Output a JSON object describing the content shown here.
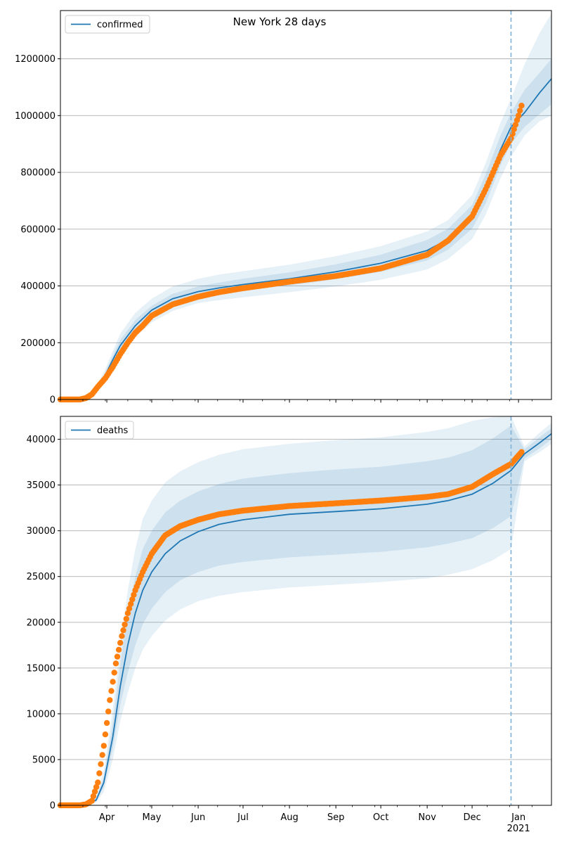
{
  "figure": {
    "title": "New York 28 days"
  },
  "colors": {
    "model": "#1f77b4",
    "observed": "#ff7f0e",
    "band": "#1f77b4",
    "grid": "#b0b0b0",
    "forecast_line": "#7fb0d6"
  },
  "x_axis": {
    "start": "2020-03-01",
    "end": "2021-01-23",
    "ticks": [
      {
        "date": "2020-04-01",
        "label": "Apr"
      },
      {
        "date": "2020-05-01",
        "label": "May"
      },
      {
        "date": "2020-06-01",
        "label": "Jun"
      },
      {
        "date": "2020-07-01",
        "label": "Jul"
      },
      {
        "date": "2020-08-01",
        "label": "Aug"
      },
      {
        "date": "2020-09-01",
        "label": "Sep"
      },
      {
        "date": "2020-10-01",
        "label": "Oct"
      },
      {
        "date": "2020-11-01",
        "label": "Nov"
      },
      {
        "date": "2020-12-01",
        "label": "Dec"
      },
      {
        "date": "2021-01-01",
        "label": "Jan"
      }
    ],
    "year_label": "2021",
    "forecast_date": "2020-12-27"
  },
  "chart_data": [
    {
      "type": "line",
      "legend": "confirmed",
      "legend_loc": "upper left",
      "grid": "y",
      "ylim": [
        0,
        1370000
      ],
      "yticks": [
        "0",
        "200000",
        "400000",
        "600000",
        "800000",
        "1000000",
        "1200000"
      ],
      "model": {
        "x": [
          "2020-03-01",
          "2020-03-15",
          "2020-03-20",
          "2020-03-25",
          "2020-03-30",
          "2020-04-05",
          "2020-04-10",
          "2020-04-20",
          "2020-05-01",
          "2020-05-15",
          "2020-06-01",
          "2020-06-15",
          "2020-07-01",
          "2020-08-01",
          "2020-09-01",
          "2020-10-01",
          "2020-11-01",
          "2020-11-15",
          "2020-12-01",
          "2020-12-10",
          "2020-12-20",
          "2020-12-27",
          "2021-01-05",
          "2021-01-15",
          "2021-01-23"
        ],
        "y": [
          0,
          0,
          8000,
          35000,
          75000,
          140000,
          190000,
          260000,
          315000,
          355000,
          380000,
          393000,
          405000,
          425000,
          450000,
          480000,
          525000,
          565000,
          645000,
          740000,
          880000,
          960000,
          1010000,
          1080000,
          1130000
        ],
        "band_inner": [
          [
            0,
            0
          ],
          [
            0,
            0
          ],
          [
            6000,
            10000
          ],
          [
            30000,
            40000
          ],
          [
            65000,
            85000
          ],
          [
            125000,
            155000
          ],
          [
            170000,
            210000
          ],
          [
            240000,
            280000
          ],
          [
            295000,
            330000
          ],
          [
            335000,
            372000
          ],
          [
            362000,
            398000
          ],
          [
            373000,
            412000
          ],
          [
            384000,
            425000
          ],
          [
            402000,
            448000
          ],
          [
            424000,
            476000
          ],
          [
            450000,
            510000
          ],
          [
            490000,
            562000
          ],
          [
            528000,
            602000
          ],
          [
            602000,
            685000
          ],
          [
            690000,
            792000
          ],
          [
            825000,
            930000
          ],
          [
            902000,
            1010000
          ],
          [
            960000,
            1090000
          ],
          [
            1005000,
            1150000
          ],
          [
            1040000,
            1200000
          ]
        ],
        "band_outer": [
          [
            0,
            0
          ],
          [
            0,
            0
          ],
          [
            4000,
            13000
          ],
          [
            24000,
            47000
          ],
          [
            55000,
            96000
          ],
          [
            110000,
            170000
          ],
          [
            150000,
            232000
          ],
          [
            220000,
            305000
          ],
          [
            272000,
            355000
          ],
          [
            312000,
            398000
          ],
          [
            340000,
            425000
          ],
          [
            350000,
            440000
          ],
          [
            360000,
            452000
          ],
          [
            378000,
            475000
          ],
          [
            398000,
            505000
          ],
          [
            422000,
            540000
          ],
          [
            458000,
            592000
          ],
          [
            495000,
            632000
          ],
          [
            565000,
            720000
          ],
          [
            650000,
            832000
          ],
          [
            780000,
            975000
          ],
          [
            855000,
            1060000
          ],
          [
            930000,
            1180000
          ],
          [
            980000,
            1290000
          ],
          [
            1000000,
            1360000
          ]
        ]
      },
      "observed": {
        "x": [
          "2020-03-01",
          "2020-03-14",
          "2020-03-18",
          "2020-03-22",
          "2020-03-26",
          "2020-03-31",
          "2020-04-05",
          "2020-04-10",
          "2020-04-15",
          "2020-04-20",
          "2020-04-25",
          "2020-05-01",
          "2020-05-15",
          "2020-06-01",
          "2020-06-15",
          "2020-07-01",
          "2020-08-01",
          "2020-09-01",
          "2020-10-01",
          "2020-11-01",
          "2020-11-15",
          "2020-12-01",
          "2020-12-10",
          "2020-12-20",
          "2020-12-27",
          "2021-01-01",
          "2021-01-03"
        ],
        "y": [
          0,
          0,
          5000,
          18000,
          45000,
          75000,
          115000,
          160000,
          200000,
          235000,
          260000,
          295000,
          335000,
          362000,
          378000,
          392000,
          415000,
          435000,
          462000,
          510000,
          560000,
          645000,
          740000,
          860000,
          920000,
          1000000,
          1035000
        ]
      }
    },
    {
      "type": "line",
      "legend": "deaths",
      "legend_loc": "upper left",
      "grid": "y",
      "ylim": [
        0,
        42500
      ],
      "yticks": [
        "0",
        "5000",
        "10000",
        "15000",
        "20000",
        "25000",
        "30000",
        "35000",
        "40000"
      ],
      "model": {
        "x": [
          "2020-03-01",
          "2020-03-15",
          "2020-03-20",
          "2020-03-25",
          "2020-03-30",
          "2020-04-05",
          "2020-04-10",
          "2020-04-15",
          "2020-04-20",
          "2020-04-25",
          "2020-05-01",
          "2020-05-10",
          "2020-05-20",
          "2020-06-01",
          "2020-06-15",
          "2020-07-01",
          "2020-08-01",
          "2020-09-01",
          "2020-10-01",
          "2020-11-01",
          "2020-11-15",
          "2020-12-01",
          "2020-12-15",
          "2020-12-27",
          "2021-01-05",
          "2021-01-15",
          "2021-01-23"
        ],
        "y": [
          0,
          0,
          100,
          600,
          2500,
          7500,
          13000,
          17500,
          21000,
          23500,
          25500,
          27500,
          28900,
          29900,
          30700,
          31200,
          31800,
          32100,
          32400,
          32900,
          33300,
          34000,
          35200,
          36600,
          38400,
          39600,
          40600
        ],
        "band_inner": [
          [
            0,
            0
          ],
          [
            0,
            0
          ],
          [
            70,
            130
          ],
          [
            450,
            800
          ],
          [
            2000,
            3100
          ],
          [
            6200,
            9000
          ],
          [
            11000,
            15500
          ],
          [
            14500,
            21000
          ],
          [
            17500,
            25000
          ],
          [
            19800,
            28000
          ],
          [
            21500,
            30000
          ],
          [
            23300,
            32000
          ],
          [
            24600,
            33300
          ],
          [
            25500,
            34300
          ],
          [
            26200,
            35100
          ],
          [
            26600,
            35700
          ],
          [
            27100,
            36300
          ],
          [
            27400,
            36700
          ],
          [
            27700,
            37000
          ],
          [
            28200,
            37600
          ],
          [
            28600,
            38000
          ],
          [
            29200,
            38800
          ],
          [
            30300,
            40100
          ],
          [
            31600,
            41500
          ],
          [
            37900,
            38900
          ],
          [
            39000,
            40200
          ],
          [
            40000,
            41200
          ]
        ],
        "band_outer": [
          [
            0,
            0
          ],
          [
            0,
            0
          ],
          [
            40,
            170
          ],
          [
            320,
            1050
          ],
          [
            1500,
            3800
          ],
          [
            5000,
            10500
          ],
          [
            9200,
            17500
          ],
          [
            12300,
            23500
          ],
          [
            15000,
            28000
          ],
          [
            17000,
            31300
          ],
          [
            18500,
            33300
          ],
          [
            20200,
            35300
          ],
          [
            21400,
            36500
          ],
          [
            22300,
            37500
          ],
          [
            22900,
            38300
          ],
          [
            23300,
            38900
          ],
          [
            23800,
            39500
          ],
          [
            24100,
            39900
          ],
          [
            24400,
            40200
          ],
          [
            24800,
            40800
          ],
          [
            25200,
            41200
          ],
          [
            25800,
            42000
          ],
          [
            26800,
            42400
          ],
          [
            28000,
            42500
          ],
          [
            37600,
            39200
          ],
          [
            38600,
            40700
          ],
          [
            39500,
            41800
          ]
        ]
      },
      "observed": {
        "x": [
          "2020-03-01",
          "2020-03-14",
          "2020-03-18",
          "2020-03-22",
          "2020-03-26",
          "2020-03-30",
          "2020-04-03",
          "2020-04-07",
          "2020-04-11",
          "2020-04-15",
          "2020-04-20",
          "2020-04-25",
          "2020-05-01",
          "2020-05-10",
          "2020-05-20",
          "2020-06-01",
          "2020-06-15",
          "2020-07-01",
          "2020-08-01",
          "2020-09-01",
          "2020-10-01",
          "2020-11-01",
          "2020-11-15",
          "2020-12-01",
          "2020-12-15",
          "2020-12-27",
          "2021-01-03"
        ],
        "y": [
          0,
          0,
          100,
          500,
          2500,
          6500,
          11500,
          15500,
          18500,
          21000,
          23500,
          25500,
          27500,
          29500,
          30500,
          31200,
          31800,
          32200,
          32700,
          33000,
          33300,
          33700,
          34000,
          34800,
          36200,
          37300,
          38600
        ]
      }
    }
  ]
}
